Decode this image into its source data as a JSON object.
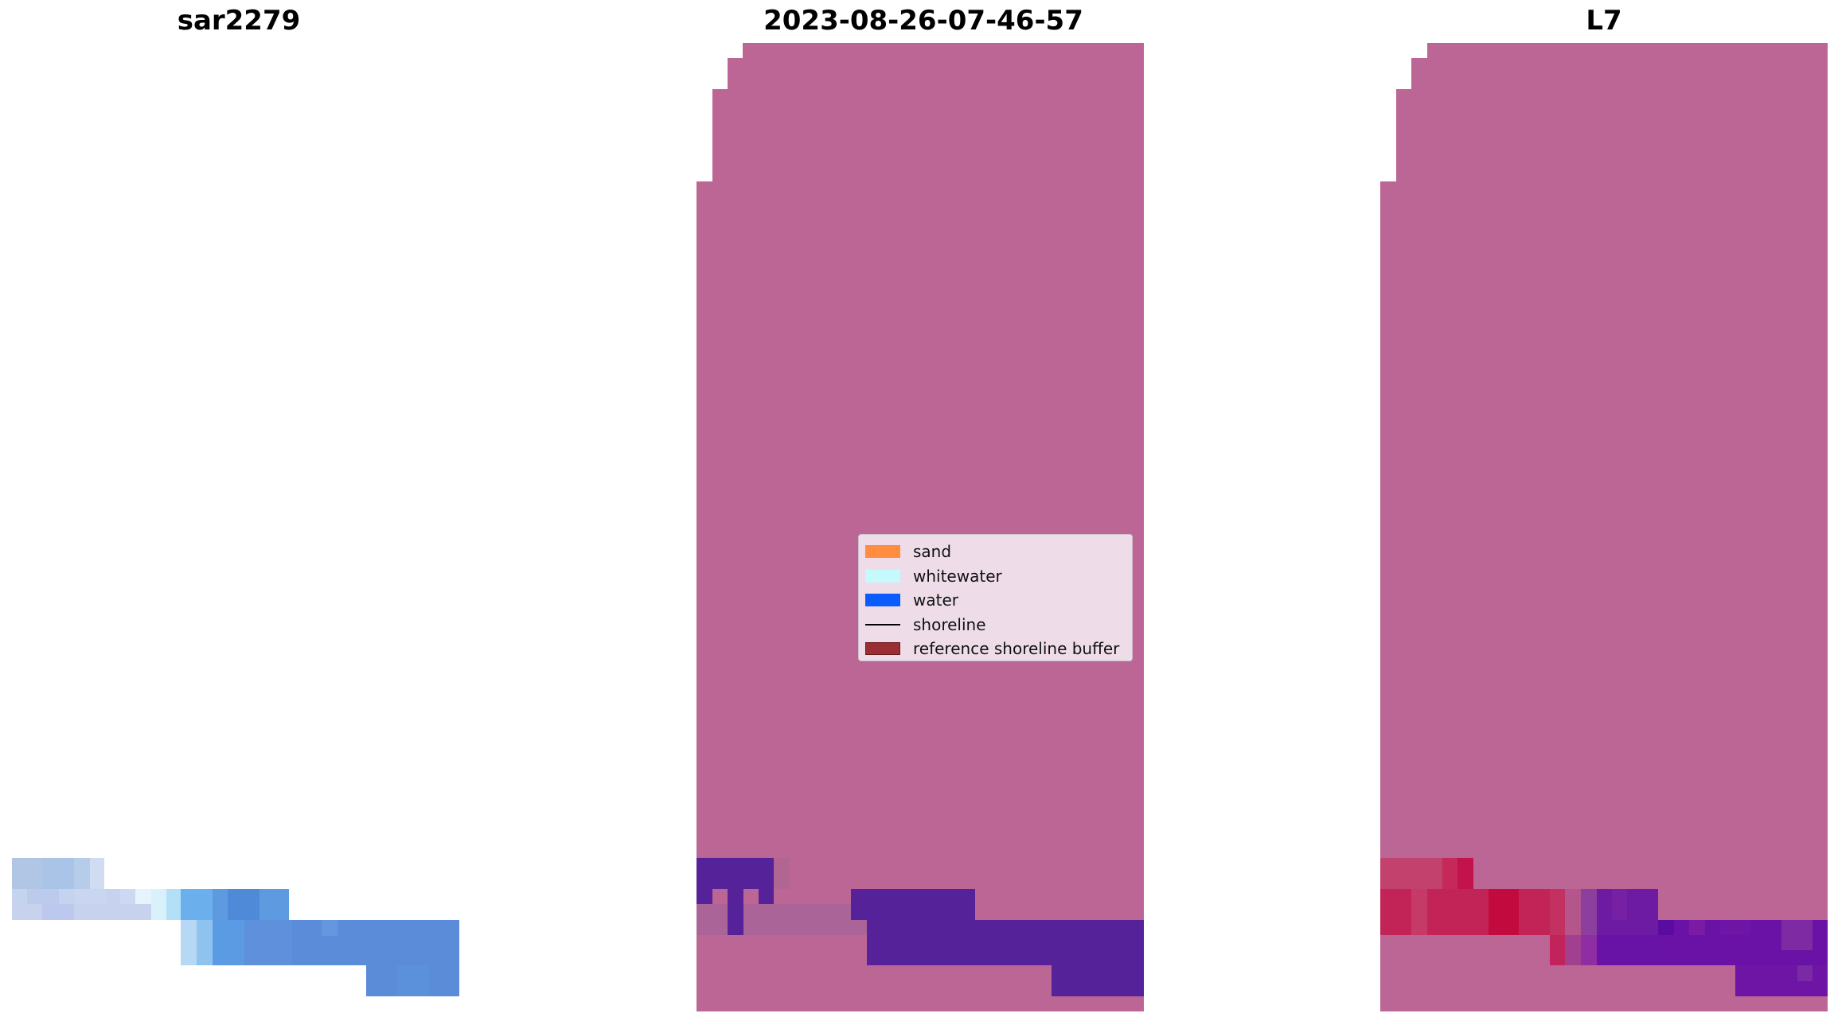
{
  "panels": [
    {
      "title": "sar2279"
    },
    {
      "title": "2023-08-26-07-46-57"
    },
    {
      "title": "L7"
    }
  ],
  "legend": {
    "items": [
      {
        "label": "sand",
        "color": "#ff8c3f",
        "kind": "patch"
      },
      {
        "label": "whitewater",
        "color": "#c6f9fb",
        "kind": "patch"
      },
      {
        "label": "water",
        "color": "#0a5cff",
        "kind": "patch"
      },
      {
        "label": "shoreline",
        "color": "#000000",
        "kind": "line"
      },
      {
        "label": "reference shoreline buffer",
        "color": "#9b2d35",
        "kind": "patch"
      }
    ]
  },
  "colors": {
    "buffer_overlay": "#bc6696",
    "water_overlay": "#56229a",
    "mixed_overlay": "#b06593",
    "sar_light": "#c4d3ec",
    "sar_blue": "#5b8cd9",
    "l7_red": "#c2395f",
    "l7_purple": "#6a12a6"
  }
}
